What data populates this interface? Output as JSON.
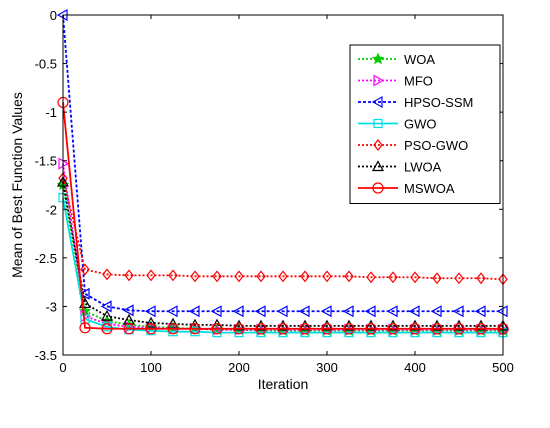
{
  "chart_data": {
    "type": "line",
    "title": "",
    "xlabel": "Iteration",
    "ylabel": "Mean of Best Function Values",
    "xlim": [
      0,
      500
    ],
    "ylim": [
      -3.5,
      0
    ],
    "xticks": [
      0,
      100,
      200,
      300,
      400,
      500
    ],
    "yticks": [
      0,
      -0.5,
      -1,
      -1.5,
      -2,
      -2.5,
      -3,
      -3.5
    ],
    "xtick_labels": [
      "0",
      "100",
      "200",
      "300",
      "400",
      "500"
    ],
    "ytick_labels": [
      "0",
      "-0.5",
      "-1",
      "-1.5",
      "-2",
      "-2.5",
      "-3",
      "-3.5"
    ],
    "grid": false,
    "legend_position": "top-right",
    "x": [
      0,
      25,
      50,
      75,
      100,
      125,
      150,
      175,
      200,
      225,
      250,
      275,
      300,
      325,
      350,
      375,
      400,
      425,
      450,
      475,
      500
    ],
    "series": [
      {
        "name": "WOA",
        "color": "#00cc00",
        "marker": "star",
        "dash": "2,2",
        "values": [
          -1.75,
          -3.05,
          -3.15,
          -3.19,
          -3.21,
          -3.22,
          -3.23,
          -3.24,
          -3.24,
          -3.25,
          -3.25,
          -3.25,
          -3.25,
          -3.25,
          -3.25,
          -3.25,
          -3.25,
          -3.25,
          -3.25,
          -3.25,
          -3.25
        ]
      },
      {
        "name": "MFO",
        "color": "#ff00ff",
        "marker": "triangle-right",
        "dash": "2,2",
        "values": [
          -1.53,
          -3.1,
          -3.18,
          -3.21,
          -3.22,
          -3.23,
          -3.23,
          -3.24,
          -3.24,
          -3.24,
          -3.24,
          -3.24,
          -3.24,
          -3.24,
          -3.24,
          -3.24,
          -3.24,
          -3.24,
          -3.24,
          -3.24,
          -3.24
        ]
      },
      {
        "name": "HPSO-SSM",
        "color": "#0000ff",
        "marker": "triangle-left",
        "dash": "3,2",
        "values": [
          0,
          -2.87,
          -3.0,
          -3.04,
          -3.05,
          -3.05,
          -3.05,
          -3.05,
          -3.05,
          -3.05,
          -3.05,
          -3.05,
          -3.05,
          -3.05,
          -3.05,
          -3.05,
          -3.05,
          -3.05,
          -3.05,
          -3.05,
          -3.05
        ]
      },
      {
        "name": "GWO",
        "color": "#00e0e0",
        "marker": "square",
        "dash": "",
        "values": [
          -1.88,
          -3.13,
          -3.21,
          -3.24,
          -3.25,
          -3.26,
          -3.26,
          -3.27,
          -3.27,
          -3.27,
          -3.27,
          -3.27,
          -3.27,
          -3.27,
          -3.27,
          -3.27,
          -3.27,
          -3.27,
          -3.27,
          -3.27,
          -3.27
        ]
      },
      {
        "name": "PSO-GWO",
        "color": "#ff0000",
        "marker": "diamond",
        "dash": "2,2",
        "values": [
          -1.68,
          -2.62,
          -2.67,
          -2.68,
          -2.68,
          -2.68,
          -2.69,
          -2.69,
          -2.69,
          -2.69,
          -2.69,
          -2.69,
          -2.69,
          -2.69,
          -2.7,
          -2.7,
          -2.7,
          -2.71,
          -2.71,
          -2.71,
          -2.72
        ]
      },
      {
        "name": "LWOA",
        "color": "#000000",
        "marker": "triangle-up",
        "dash": "2,2",
        "values": [
          -1.72,
          -2.97,
          -3.1,
          -3.14,
          -3.17,
          -3.18,
          -3.19,
          -3.19,
          -3.2,
          -3.2,
          -3.2,
          -3.2,
          -3.2,
          -3.2,
          -3.2,
          -3.2,
          -3.2,
          -3.2,
          -3.2,
          -3.2,
          -3.2
        ]
      },
      {
        "name": "MSWOA",
        "color": "#ff0000",
        "marker": "circle",
        "dash": "",
        "values": [
          -0.9,
          -3.22,
          -3.23,
          -3.23,
          -3.23,
          -3.23,
          -3.23,
          -3.23,
          -3.23,
          -3.23,
          -3.23,
          -3.23,
          -3.23,
          -3.23,
          -3.23,
          -3.23,
          -3.23,
          -3.23,
          -3.23,
          -3.23,
          -3.23
        ]
      }
    ]
  }
}
